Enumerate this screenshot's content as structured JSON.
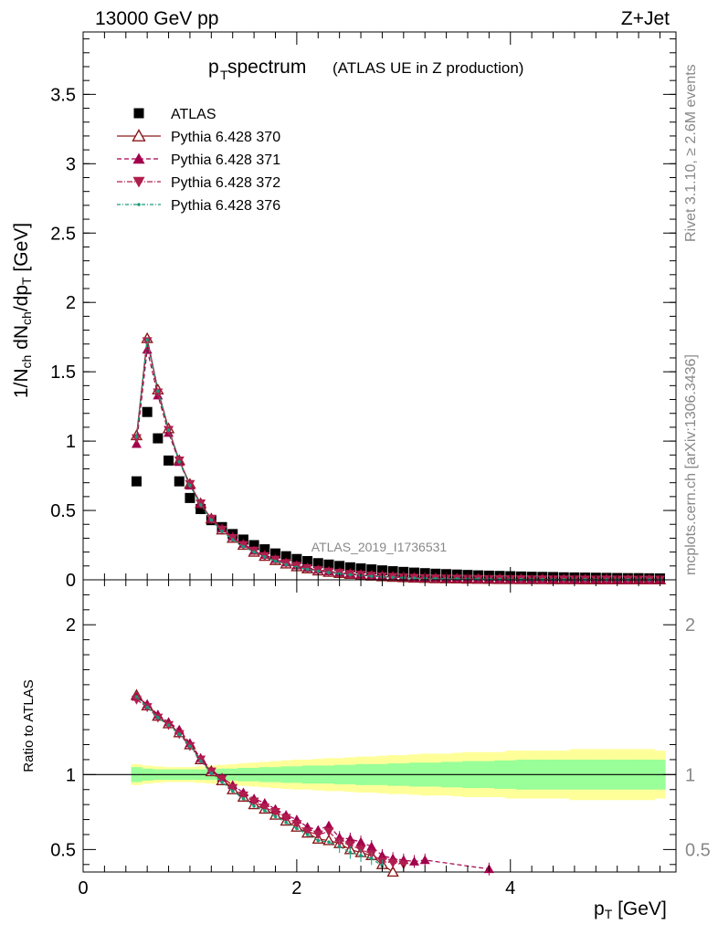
{
  "header": {
    "energy": "13000 GeV pp",
    "process": "Z+Jet"
  },
  "title": {
    "main": "p",
    "main_sub": "T",
    "main_rest": " spectrum",
    "secondary": "(ATLAS UE in Z production)"
  },
  "side_labels": {
    "rivet": "Rivet 3.1.10, ≥ 2.6M events",
    "mcplots": "mcplots.cern.ch [arXiv:1306.3436]"
  },
  "watermark": "ATLAS_2019_I1736531",
  "chart_data": [
    {
      "type": "scatter",
      "panel": "main",
      "ylabel": "1/N_ch dN_ch/dp_T [GeV]",
      "xlim": [
        0,
        5.55
      ],
      "ylim": [
        0,
        3.95
      ],
      "yticks": [
        0,
        0.5,
        1,
        1.5,
        2,
        2.5,
        3,
        3.5
      ],
      "ytick_labels": [
        "0",
        "0.5",
        "1",
        "1.5",
        "2",
        "2.5",
        "3",
        "3.5"
      ],
      "legend_position": "top-left",
      "x": [
        0.5,
        0.6,
        0.7,
        0.8,
        0.9,
        1.0,
        1.1,
        1.2,
        1.3,
        1.4,
        1.5,
        1.6,
        1.7,
        1.8,
        1.9,
        2.0,
        2.1,
        2.2,
        2.3,
        2.4,
        2.5,
        2.6,
        2.7,
        2.8,
        2.9,
        3.0,
        3.1,
        3.2,
        3.3,
        3.4,
        3.5,
        3.6,
        3.7,
        3.8,
        3.9,
        4.0,
        4.1,
        4.2,
        4.3,
        4.4,
        4.5,
        4.6,
        4.7,
        4.8,
        4.9,
        5.0,
        5.1,
        5.2,
        5.3,
        5.4
      ],
      "series": [
        {
          "name": "ATLAS",
          "color": "#000000",
          "marker": "square",
          "values": [
            0.71,
            1.21,
            1.02,
            0.86,
            0.71,
            0.59,
            0.51,
            0.43,
            0.38,
            0.33,
            0.29,
            0.25,
            0.22,
            0.19,
            0.17,
            0.15,
            0.135,
            0.12,
            0.11,
            0.1,
            0.09,
            0.082,
            0.075,
            0.068,
            0.062,
            0.057,
            0.052,
            0.048,
            0.044,
            0.041,
            0.038,
            0.035,
            0.032,
            0.03,
            0.028,
            0.026,
            0.024,
            0.022,
            0.021,
            0.02,
            0.018,
            0.017,
            0.016,
            0.015,
            0.014,
            0.013,
            0.012,
            0.012,
            0.011,
            0.01
          ]
        },
        {
          "name": "Pythia 6.428 370",
          "color": "#8b1a1a",
          "marker": "triangle-up-open",
          "dash": "",
          "values": [
            1.04,
            1.74,
            1.37,
            1.09,
            0.86,
            0.69,
            0.55,
            0.44,
            0.36,
            0.3,
            0.25,
            0.2,
            0.17,
            0.14,
            0.115,
            0.095,
            0.08,
            0.065,
            0.055,
            0.047,
            0.04,
            0.033,
            0.028,
            0.023,
            0.019,
            0.016,
            0.013,
            0.011,
            0.009,
            0.008,
            0.007,
            0.006,
            0.005,
            0.004,
            0.0035,
            0.003,
            0.0025,
            0.002,
            0.002,
            0.0015,
            0.0013,
            0.0011,
            0.001,
            0.0009,
            0.0008,
            0.0007,
            0.0006,
            0.0005,
            0.0005,
            0.0004
          ]
        },
        {
          "name": "Pythia 6.428 371",
          "color": "#a3004c",
          "marker": "triangle-up",
          "dash": "5,3",
          "values": [
            0.98,
            1.66,
            1.33,
            1.06,
            0.85,
            0.68,
            0.55,
            0.44,
            0.37,
            0.31,
            0.26,
            0.21,
            0.18,
            0.15,
            0.125,
            0.105,
            0.088,
            0.073,
            0.062,
            0.053,
            0.045,
            0.038,
            0.032,
            0.027,
            0.023,
            0.019,
            0.016,
            0.014,
            0.012,
            0.01,
            0.009,
            0.008,
            0.007,
            0.006,
            0.005,
            0.0045,
            0.004,
            0.0035,
            0.003,
            0.0027,
            0.0024,
            0.0021,
            0.0019,
            0.0017,
            0.0015,
            0.0013,
            0.0012,
            0.0011,
            0.001,
            0.0009
          ]
        },
        {
          "name": "Pythia 6.428 372",
          "color": "#b01e4d",
          "marker": "triangle-down",
          "dash": "6,2,1,2",
          "values": [
            1.02,
            1.72,
            1.35,
            1.08,
            0.86,
            0.69,
            0.55,
            0.44,
            0.36,
            0.3,
            0.25,
            0.21,
            0.17,
            0.145,
            0.12,
            0.1,
            0.083,
            0.069,
            0.058,
            0.049,
            0.041,
            0.035,
            0.029,
            0.024,
            0.02,
            0.017,
            0.014,
            0.012,
            0.01,
            0.009,
            0.008,
            0.007,
            0.006,
            0.005,
            0.0045,
            0.004,
            0.0035,
            0.003,
            0.0027,
            0.0024,
            0.0021,
            0.0019,
            0.0017,
            0.0015,
            0.0013,
            0.0012,
            0.0011,
            0.001,
            0.0009,
            0.0008
          ]
        },
        {
          "name": "Pythia 6.428 376",
          "color": "#1a9a7a",
          "marker": "dot",
          "dash": "4,2,1,2",
          "values": [
            1.03,
            1.73,
            1.36,
            1.08,
            0.85,
            0.68,
            0.54,
            0.43,
            0.35,
            0.29,
            0.24,
            0.2,
            0.165,
            0.135,
            0.11,
            0.09,
            0.075,
            0.062,
            0.052,
            0.044,
            0.037,
            0.031,
            0.026,
            0.021,
            0.018,
            0.015,
            0.012,
            0.01,
            0.009,
            0.008,
            0.007,
            0.006,
            0.005,
            0.004,
            0.0035,
            0.003,
            0.0025,
            0.002,
            0.002,
            0.0015,
            0.0013,
            0.0011,
            0.001,
            0.0009,
            0.0008,
            0.0007,
            0.0006,
            0.0005,
            0.0005,
            0.0004
          ]
        }
      ]
    },
    {
      "type": "scatter",
      "panel": "ratio",
      "xlabel": "p_T [GeV]",
      "ylabel": "Ratio to ATLAS",
      "xlim": [
        0,
        5.55
      ],
      "ylim": [
        0.35,
        2.3
      ],
      "yticks": [
        0.5,
        1,
        2
      ],
      "ytick_labels": [
        "0.5",
        "1",
        "2"
      ],
      "xticks": [
        0,
        2,
        4
      ],
      "xtick_labels": [
        "0",
        "2",
        "4"
      ],
      "reference_line": 1,
      "bands": {
        "x": [
          0.5,
          0.6,
          0.7,
          0.8,
          0.9,
          1.0,
          1.1,
          1.2,
          1.3,
          1.4,
          1.5,
          1.6,
          1.7,
          1.8,
          1.9,
          2.0,
          2.1,
          2.2,
          2.3,
          2.4,
          2.5,
          2.6,
          2.7,
          2.8,
          2.9,
          3.0,
          3.1,
          3.2,
          3.3,
          3.4,
          3.5,
          3.6,
          3.7,
          3.8,
          3.9,
          4.0,
          4.1,
          4.2,
          4.3,
          4.4,
          4.5,
          4.6,
          4.7,
          4.8,
          4.9,
          5.0,
          5.1,
          5.2,
          5.3,
          5.4
        ],
        "green_half": [
          0.05,
          0.04,
          0.035,
          0.035,
          0.035,
          0.035,
          0.035,
          0.035,
          0.04,
          0.04,
          0.045,
          0.045,
          0.05,
          0.05,
          0.055,
          0.055,
          0.06,
          0.06,
          0.06,
          0.065,
          0.065,
          0.07,
          0.07,
          0.07,
          0.075,
          0.075,
          0.08,
          0.08,
          0.08,
          0.085,
          0.085,
          0.09,
          0.09,
          0.09,
          0.095,
          0.095,
          0.1,
          0.1,
          0.1,
          0.1,
          0.1,
          0.1,
          0.1,
          0.1,
          0.1,
          0.1,
          0.1,
          0.1,
          0.1,
          0.1
        ],
        "yellow_half": [
          0.07,
          0.06,
          0.055,
          0.05,
          0.05,
          0.05,
          0.055,
          0.06,
          0.065,
          0.07,
          0.075,
          0.08,
          0.085,
          0.09,
          0.095,
          0.1,
          0.1,
          0.105,
          0.11,
          0.11,
          0.115,
          0.12,
          0.12,
          0.125,
          0.13,
          0.13,
          0.135,
          0.14,
          0.14,
          0.14,
          0.145,
          0.15,
          0.15,
          0.15,
          0.15,
          0.16,
          0.16,
          0.16,
          0.16,
          0.16,
          0.16,
          0.17,
          0.17,
          0.17,
          0.17,
          0.17,
          0.17,
          0.17,
          0.17,
          0.16
        ]
      },
      "series": [
        {
          "name": "Pythia 6.428 370",
          "color": "#8b1a1a",
          "marker": "triangle-up-open",
          "dash": "",
          "x": [
            0.5,
            0.6,
            0.7,
            0.8,
            0.9,
            1.0,
            1.1,
            1.2,
            1.3,
            1.4,
            1.5,
            1.6,
            1.7,
            1.8,
            1.9,
            2.0,
            2.1,
            2.2,
            2.3,
            2.4,
            2.5,
            2.6,
            2.7,
            2.8,
            2.9
          ],
          "values": [
            1.53,
            1.46,
            1.39,
            1.34,
            1.28,
            1.2,
            1.1,
            1.02,
            0.96,
            0.9,
            0.85,
            0.8,
            0.77,
            0.73,
            0.69,
            0.65,
            0.61,
            0.57,
            0.56,
            0.54,
            0.5,
            0.48,
            0.46,
            0.4,
            0.35
          ]
        },
        {
          "name": "Pythia 6.428 371",
          "color": "#a3004c",
          "marker": "triangle-up",
          "dash": "5,3",
          "x": [
            0.5,
            0.6,
            0.7,
            0.8,
            0.9,
            1.0,
            1.1,
            1.2,
            1.3,
            1.4,
            1.5,
            1.6,
            1.7,
            1.8,
            1.9,
            2.0,
            2.1,
            2.2,
            2.3,
            2.4,
            2.5,
            2.6,
            2.7,
            2.8,
            2.9,
            3.0,
            3.1,
            3.2,
            3.8
          ],
          "values": [
            1.52,
            1.47,
            1.4,
            1.35,
            1.3,
            1.21,
            1.11,
            1.03,
            0.98,
            0.93,
            0.88,
            0.84,
            0.81,
            0.77,
            0.73,
            0.7,
            0.65,
            0.63,
            0.66,
            0.58,
            0.57,
            0.55,
            0.52,
            0.46,
            0.44,
            0.43,
            0.42,
            0.43,
            0.37
          ]
        },
        {
          "name": "Pythia 6.428 372",
          "color": "#b01e4d",
          "marker": "triangle-down",
          "dash": "6,2,1,2",
          "x": [
            0.5,
            0.6,
            0.7,
            0.8,
            0.9,
            1.0,
            1.1,
            1.2,
            1.3,
            1.4,
            1.5,
            1.6,
            1.7,
            1.8,
            1.9,
            2.0,
            2.1,
            2.2,
            2.3,
            2.4,
            2.5,
            2.6,
            2.7,
            2.8,
            2.9,
            3.0
          ],
          "values": [
            1.5,
            1.45,
            1.38,
            1.33,
            1.27,
            1.19,
            1.1,
            1.02,
            0.97,
            0.91,
            0.86,
            0.82,
            0.78,
            0.75,
            0.71,
            0.67,
            0.62,
            0.6,
            0.62,
            0.55,
            0.53,
            0.5,
            0.47,
            0.42,
            0.41,
            0.4
          ]
        },
        {
          "name": "Pythia 6.428 376",
          "color": "#1a9a7a",
          "marker": "dot",
          "dash": "4,2,1,2",
          "x": [
            0.5,
            0.6,
            0.7,
            0.8,
            0.9,
            1.0,
            1.1,
            1.2,
            1.3,
            1.4,
            1.5,
            1.6,
            1.7,
            1.8,
            1.9,
            2.0,
            2.1,
            2.2,
            2.3,
            2.4,
            2.5,
            2.6,
            2.7,
            2.8
          ],
          "values": [
            1.52,
            1.45,
            1.38,
            1.33,
            1.27,
            1.19,
            1.09,
            1.01,
            0.95,
            0.89,
            0.84,
            0.79,
            0.76,
            0.72,
            0.68,
            0.64,
            0.6,
            0.56,
            0.55,
            0.52,
            0.48,
            0.46,
            0.44,
            0.39
          ]
        }
      ]
    }
  ]
}
